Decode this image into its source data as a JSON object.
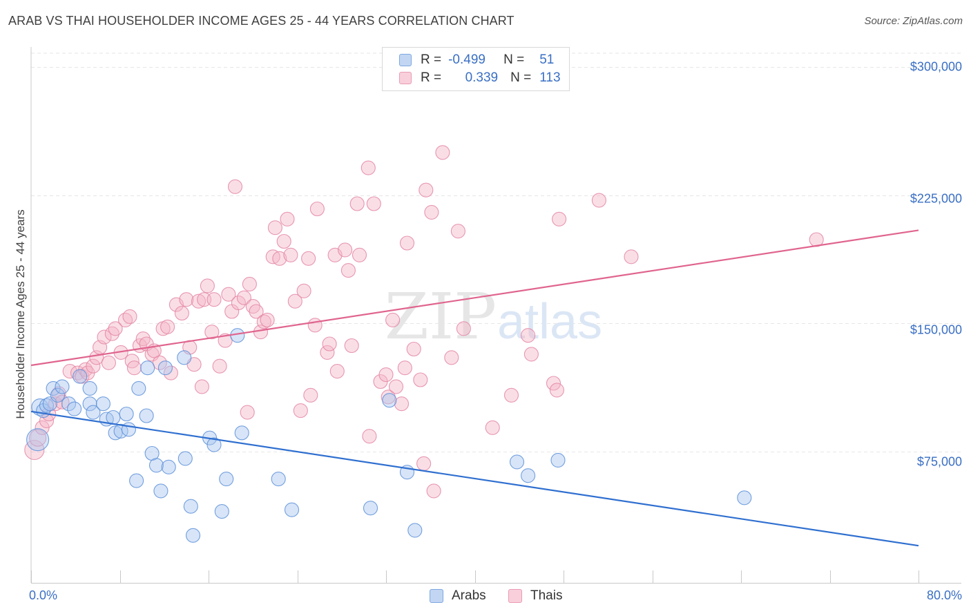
{
  "header": {
    "title": "ARAB VS THAI HOUSEHOLDER INCOME AGES 25 - 44 YEARS CORRELATION CHART",
    "source": "Source: ZipAtlas.com"
  },
  "watermark": {
    "zip": "ZIP",
    "atlas": "atlas"
  },
  "legend_top": {
    "rows": [
      {
        "r_key": "R =",
        "r_value": "-0.499",
        "n_key": "N =",
        "n_value": "51",
        "color": "#a9c6ef"
      },
      {
        "r_key": "R =",
        "r_value": "0.339",
        "n_key": "N =",
        "n_value": "113",
        "color": "#f5b5c8"
      }
    ]
  },
  "legend_bottom": [
    {
      "label": "Arabs",
      "color": "#a9c6ef"
    },
    {
      "label": "Thais",
      "color": "#f5b5c8"
    }
  ],
  "chart_data": {
    "type": "scatter",
    "title": "ARAB VS THAI HOUSEHOLDER INCOME AGES 25 - 44 YEARS CORRELATION CHART",
    "xlabel": "",
    "ylabel": "Householder Income Ages 25 - 44 years",
    "xlim": [
      0,
      80
    ],
    "ylim": [
      10000,
      310000
    ],
    "x_tick_labels": [
      "0.0%",
      "80.0%"
    ],
    "y_ticks": [
      75000,
      150000,
      225000,
      300000
    ],
    "y_tick_labels": [
      "$75,000",
      "$150,000",
      "$225,000",
      "$300,000"
    ],
    "grid": true,
    "legend_position": "top-center",
    "series": [
      {
        "name": "Arabs",
        "color": "#a9c6ef",
        "edge": "#5b8fd8",
        "trend": {
          "x": [
            0,
            80
          ],
          "y": [
            98500,
            20000
          ],
          "color": "#2f6fd0"
        },
        "points": [
          [
            0.6,
            82000,
            16
          ],
          [
            0.8,
            101000,
            12
          ],
          [
            1.1,
            99000,
            10
          ],
          [
            1.4,
            102000,
            10
          ],
          [
            1.7,
            103000,
            10
          ],
          [
            2.0,
            112000,
            10
          ],
          [
            2.4,
            108000,
            10
          ],
          [
            2.8,
            113000,
            10
          ],
          [
            3.4,
            103000,
            10
          ],
          [
            3.9,
            100000,
            10
          ],
          [
            4.4,
            119000,
            10
          ],
          [
            5.3,
            112000,
            10
          ],
          [
            5.3,
            103000,
            10
          ],
          [
            5.6,
            98000,
            10
          ],
          [
            6.5,
            103000,
            10
          ],
          [
            6.8,
            94000,
            10
          ],
          [
            7.4,
            95000,
            10
          ],
          [
            7.6,
            86000,
            10
          ],
          [
            8.1,
            87000,
            10
          ],
          [
            8.6,
            97000,
            10
          ],
          [
            8.8,
            88000,
            10
          ],
          [
            9.5,
            58000,
            10
          ],
          [
            9.7,
            112000,
            10
          ],
          [
            10.4,
            96000,
            10
          ],
          [
            10.5,
            124000,
            10
          ],
          [
            10.9,
            74000,
            10
          ],
          [
            11.3,
            67000,
            10
          ],
          [
            11.7,
            52000,
            10
          ],
          [
            12.1,
            124000,
            10
          ],
          [
            12.4,
            66000,
            10
          ],
          [
            13.8,
            130000,
            10
          ],
          [
            13.9,
            71000,
            10
          ],
          [
            14.4,
            43000,
            10
          ],
          [
            14.6,
            26000,
            10
          ],
          [
            16.1,
            83000,
            10
          ],
          [
            16.5,
            79000,
            10
          ],
          [
            17.2,
            40000,
            10
          ],
          [
            17.6,
            59000,
            10
          ],
          [
            18.6,
            143000,
            10
          ],
          [
            19.0,
            86000,
            10
          ],
          [
            22.3,
            59000,
            10
          ],
          [
            23.5,
            41000,
            10
          ],
          [
            30.6,
            42000,
            10
          ],
          [
            32.3,
            105000,
            10
          ],
          [
            33.9,
            63000,
            10
          ],
          [
            34.6,
            29000,
            10
          ],
          [
            43.8,
            69000,
            10
          ],
          [
            44.8,
            61000,
            10
          ],
          [
            47.5,
            70000,
            10
          ],
          [
            64.3,
            48000,
            10
          ]
        ]
      },
      {
        "name": "Thais",
        "color": "#f5b5c8",
        "edge": "#e386a5",
        "trend": {
          "x": [
            0,
            80
          ],
          "y": [
            125500,
            204500
          ],
          "color": "#e0648e"
        },
        "points": [
          [
            0.3,
            76000,
            14
          ],
          [
            0.6,
            83000,
            12
          ],
          [
            1.0,
            89000,
            10
          ],
          [
            1.4,
            93000,
            10
          ],
          [
            1.6,
            97000,
            10
          ],
          [
            2.2,
            103000,
            10
          ],
          [
            2.5,
            109000,
            10
          ],
          [
            2.8,
            104000,
            10
          ],
          [
            3.5,
            122000,
            10
          ],
          [
            4.2,
            121000,
            10
          ],
          [
            4.6,
            119000,
            10
          ],
          [
            4.9,
            123000,
            10
          ],
          [
            5.1,
            121000,
            10
          ],
          [
            5.6,
            125000,
            10
          ],
          [
            5.9,
            130000,
            10
          ],
          [
            6.2,
            136000,
            10
          ],
          [
            6.6,
            142000,
            10
          ],
          [
            7.0,
            127000,
            10
          ],
          [
            7.3,
            144000,
            10
          ],
          [
            7.6,
            147000,
            10
          ],
          [
            8.1,
            133000,
            10
          ],
          [
            8.5,
            152000,
            10
          ],
          [
            8.9,
            154000,
            10
          ],
          [
            9.1,
            128000,
            10
          ],
          [
            9.3,
            124000,
            10
          ],
          [
            9.8,
            137000,
            10
          ],
          [
            10.1,
            141000,
            10
          ],
          [
            10.4,
            138000,
            10
          ],
          [
            10.9,
            132000,
            10
          ],
          [
            11.1,
            134000,
            10
          ],
          [
            11.6,
            127000,
            10
          ],
          [
            11.9,
            147000,
            10
          ],
          [
            12.3,
            148000,
            10
          ],
          [
            12.6,
            121000,
            10
          ],
          [
            13.1,
            161000,
            10
          ],
          [
            13.6,
            156000,
            10
          ],
          [
            14.0,
            164000,
            10
          ],
          [
            14.3,
            136000,
            10
          ],
          [
            14.7,
            126000,
            10
          ],
          [
            15.1,
            163000,
            10
          ],
          [
            15.4,
            113000,
            10
          ],
          [
            15.6,
            164000,
            10
          ],
          [
            15.9,
            172000,
            10
          ],
          [
            16.3,
            145000,
            10
          ],
          [
            16.5,
            164000,
            10
          ],
          [
            17.0,
            125000,
            10
          ],
          [
            17.5,
            140000,
            10
          ],
          [
            17.8,
            167000,
            10
          ],
          [
            18.1,
            157000,
            10
          ],
          [
            18.7,
            162000,
            10
          ],
          [
            18.4,
            230000,
            10
          ],
          [
            19.2,
            165000,
            10
          ],
          [
            19.5,
            98000,
            10
          ],
          [
            19.7,
            173000,
            10
          ],
          [
            20.0,
            160000,
            10
          ],
          [
            20.3,
            157000,
            10
          ],
          [
            20.7,
            145000,
            10
          ],
          [
            21.0,
            151000,
            10
          ],
          [
            21.3,
            152000,
            10
          ],
          [
            21.8,
            189000,
            10
          ],
          [
            22.0,
            206000,
            10
          ],
          [
            22.4,
            188000,
            10
          ],
          [
            22.8,
            198000,
            10
          ],
          [
            23.1,
            211000,
            10
          ],
          [
            23.4,
            190000,
            10
          ],
          [
            23.8,
            163000,
            10
          ],
          [
            24.3,
            99000,
            10
          ],
          [
            24.6,
            169000,
            10
          ],
          [
            25.0,
            188000,
            10
          ],
          [
            25.2,
            108000,
            10
          ],
          [
            25.6,
            149000,
            10
          ],
          [
            25.8,
            217000,
            10
          ],
          [
            26.7,
            133000,
            10
          ],
          [
            26.9,
            138000,
            10
          ],
          [
            27.4,
            190000,
            10
          ],
          [
            27.6,
            122000,
            10
          ],
          [
            28.3,
            193000,
            10
          ],
          [
            28.6,
            181000,
            10
          ],
          [
            28.9,
            137000,
            10
          ],
          [
            29.4,
            220000,
            10
          ],
          [
            29.6,
            190000,
            10
          ],
          [
            30.4,
            241000,
            10
          ],
          [
            30.5,
            84000,
            10
          ],
          [
            30.9,
            220000,
            10
          ],
          [
            31.5,
            116000,
            10
          ],
          [
            32.0,
            120000,
            10
          ],
          [
            32.2,
            107000,
            10
          ],
          [
            32.6,
            152000,
            10
          ],
          [
            32.9,
            113000,
            10
          ],
          [
            33.4,
            103000,
            10
          ],
          [
            33.7,
            124000,
            10
          ],
          [
            33.9,
            197000,
            10
          ],
          [
            34.5,
            135000,
            10
          ],
          [
            35.1,
            117000,
            10
          ],
          [
            35.4,
            68000,
            10
          ],
          [
            35.6,
            228000,
            10
          ],
          [
            36.1,
            215000,
            10
          ],
          [
            36.3,
            52000,
            10
          ],
          [
            37.1,
            250000,
            10
          ],
          [
            37.9,
            130000,
            10
          ],
          [
            38.5,
            204000,
            10
          ],
          [
            39.0,
            147000,
            10
          ],
          [
            41.6,
            89000,
            10
          ],
          [
            43.3,
            108000,
            10
          ],
          [
            44.8,
            143000,
            10
          ],
          [
            45.1,
            132000,
            10
          ],
          [
            47.1,
            115000,
            10
          ],
          [
            47.4,
            111000,
            10
          ],
          [
            47.6,
            211000,
            10
          ],
          [
            51.2,
            222000,
            10
          ],
          [
            54.1,
            189000,
            10
          ],
          [
            70.8,
            199000,
            10
          ]
        ]
      }
    ]
  }
}
